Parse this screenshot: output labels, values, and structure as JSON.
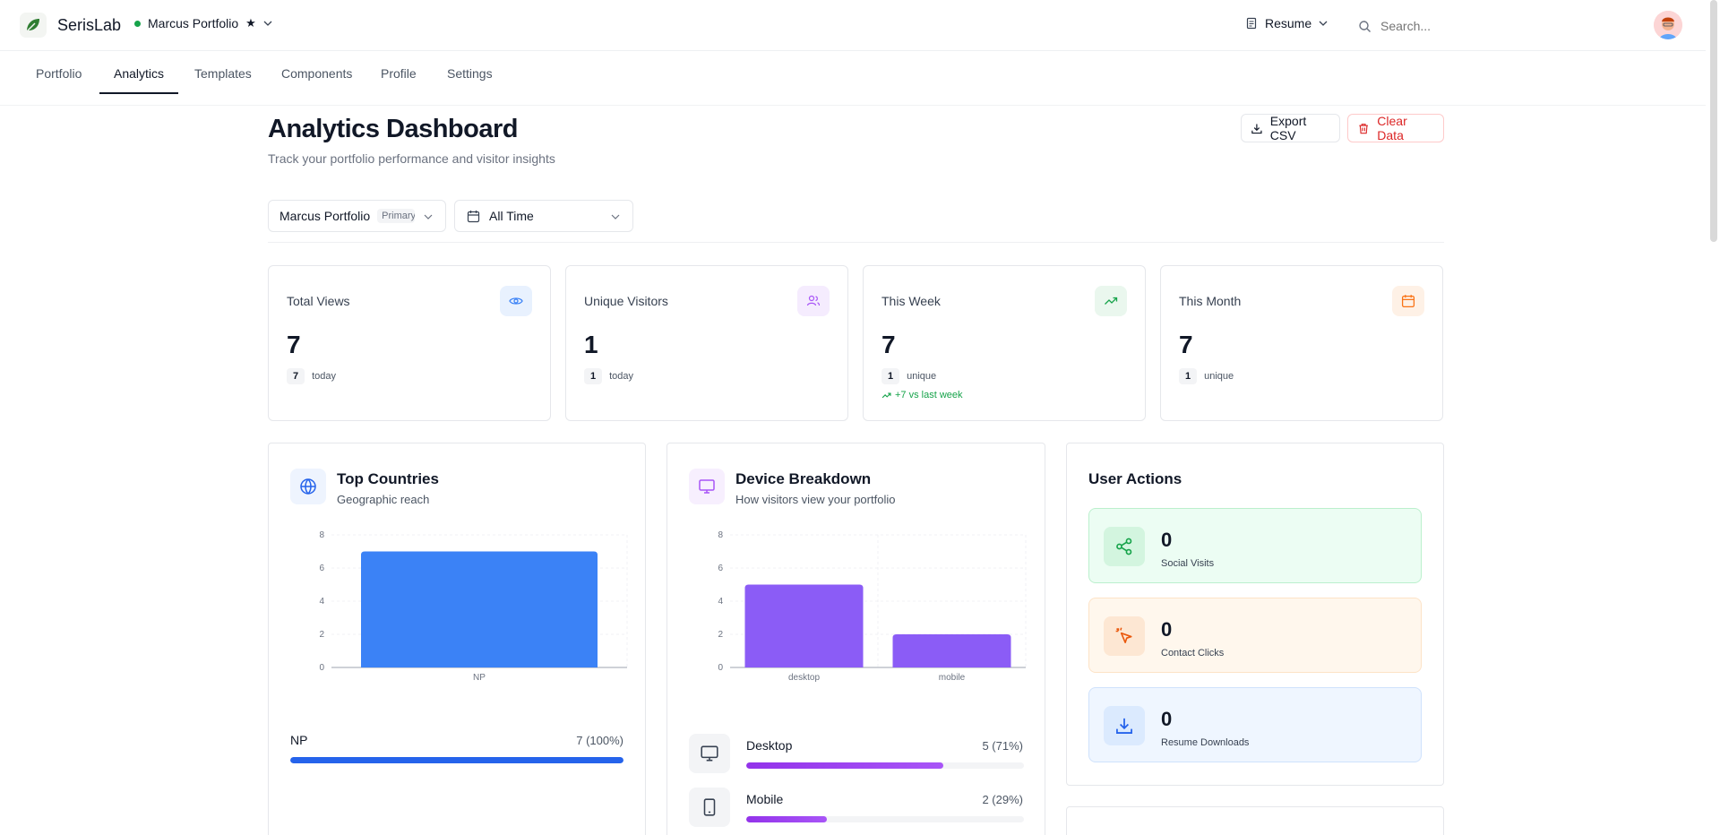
{
  "app": {
    "brand": "SerisLab",
    "portfolio_name": "Marcus Portfolio",
    "resume_label": "Resume",
    "search_placeholder": "Search..."
  },
  "tabs": [
    {
      "label": "Portfolio"
    },
    {
      "label": "Analytics",
      "active": true
    },
    {
      "label": "Templates"
    },
    {
      "label": "Components"
    },
    {
      "label": "Profile"
    },
    {
      "label": "Settings"
    }
  ],
  "page": {
    "title": "Analytics Dashboard",
    "subtitle": "Track your portfolio performance and visitor insights",
    "export_label": "Export CSV",
    "clear_label": "Clear Data"
  },
  "filters": {
    "portfolio": "Marcus Portfolio",
    "portfolio_badge": "Primary",
    "range": "All Time"
  },
  "stats": [
    {
      "label": "Total Views",
      "value": "7",
      "chip": "7",
      "sub": "today",
      "icon": "eye-icon",
      "color": "#3b82f6"
    },
    {
      "label": "Unique Visitors",
      "value": "1",
      "chip": "1",
      "sub": "today",
      "icon": "users-icon",
      "color": "#a855f7"
    },
    {
      "label": "This Week",
      "value": "7",
      "chip": "1",
      "sub": "unique",
      "trend": "+7 vs last week",
      "icon": "trending-up-icon",
      "color": "#16a34a"
    },
    {
      "label": "This Month",
      "value": "7",
      "chip": "1",
      "sub": "unique",
      "icon": "calendar-icon",
      "color": "#f97316"
    }
  ],
  "countries": {
    "title": "Top Countries",
    "subtitle": "Geographic reach",
    "rows": [
      {
        "label": "NP",
        "value": "7 (100%)",
        "fraction": 1.0
      }
    ]
  },
  "devices": {
    "title": "Device Breakdown",
    "subtitle": "How visitors view your portfolio",
    "rows": [
      {
        "label": "Desktop",
        "value": "5 (71%)",
        "fraction": 0.71
      },
      {
        "label": "Mobile",
        "value": "2 (29%)",
        "fraction": 0.29
      }
    ]
  },
  "actions": {
    "title": "User Actions",
    "items": [
      {
        "value": "0",
        "label": "Social Visits",
        "icon": "share-icon",
        "color": "#16a34a"
      },
      {
        "value": "0",
        "label": "Contact Clicks",
        "icon": "cursor-click-icon",
        "color": "#ea580c"
      },
      {
        "value": "0",
        "label": "Resume Downloads",
        "icon": "download-icon",
        "color": "#2563eb"
      }
    ]
  },
  "chart_data": [
    {
      "type": "bar",
      "categories": [
        "NP"
      ],
      "values": [
        7
      ],
      "ylim": [
        0,
        8
      ],
      "yticks": [
        "0",
        "2",
        "4",
        "6",
        "8"
      ],
      "grid": true,
      "color": "#3b82f6"
    },
    {
      "type": "bar",
      "categories": [
        "desktop",
        "mobile"
      ],
      "values": [
        5,
        2
      ],
      "ylim": [
        0,
        8
      ],
      "yticks": [
        "0",
        "2",
        "4",
        "6",
        "8"
      ],
      "grid": true,
      "color": "#8b5cf6"
    }
  ]
}
